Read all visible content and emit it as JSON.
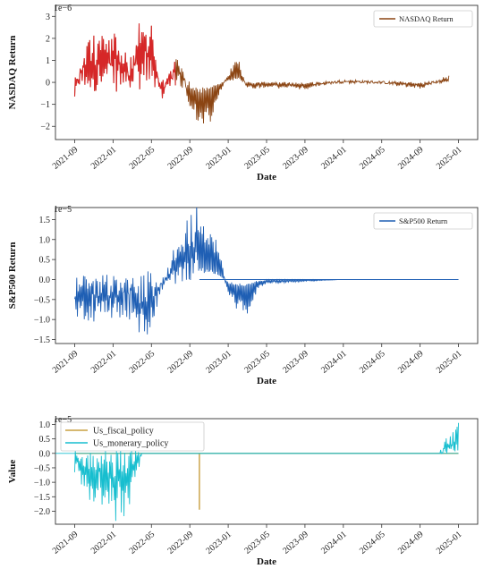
{
  "chart_data": [
    {
      "type": "line",
      "title": "",
      "xlabel": "Date",
      "ylabel": "NASDAQ Return",
      "exponent_label": "1e−6",
      "y_ticks": [
        "3",
        "2",
        "1",
        "0",
        "−1",
        "−2"
      ],
      "y_tick_values": [
        3,
        2,
        1,
        0,
        -1,
        -2
      ],
      "x_ticks": [
        "2021-09",
        "2022-01",
        "2022-05",
        "2022-09",
        "2023-01",
        "2023-05",
        "2023-09",
        "2024-01",
        "2024-05",
        "2024-09",
        "2025-01"
      ],
      "xlim": [
        "2021-07",
        "2025-03"
      ],
      "ylim": [
        -2.6,
        3.5
      ],
      "legend": {
        "position": "top-right",
        "entries": [
          "NASDAQ Return"
        ]
      },
      "series": [
        {
          "name": "NASDAQ Return",
          "color": "#8b4513",
          "highlight_color": "#d62728",
          "x": [
            "2021-09",
            "2021-10",
            "2021-11",
            "2021-12",
            "2022-01",
            "2022-02",
            "2022-03",
            "2022-04",
            "2022-05",
            "2022-06",
            "2022-07",
            "2022-08",
            "2022-09",
            "2022-10",
            "2022-11",
            "2022-12",
            "2023-01",
            "2023-02",
            "2023-03",
            "2023-05",
            "2023-09",
            "2024-01",
            "2024-05",
            "2024-09",
            "2024-12"
          ],
          "y": [
            -0.6,
            1.6,
            2.0,
            1.9,
            2.1,
            1.4,
            1.0,
            3.4,
            2.1,
            -0.8,
            0.6,
            1.0,
            -1.2,
            -2.3,
            -2.0,
            -0.7,
            0.5,
            1.2,
            -0.3,
            -0.2,
            -0.3,
            0.1,
            0.0,
            -0.3,
            0.3
          ]
        }
      ]
    },
    {
      "type": "line",
      "title": "",
      "xlabel": "Date",
      "ylabel": "S&P500 Return",
      "exponent_label": "1e−5",
      "y_ticks": [
        "1.5",
        "1.0",
        "0.5",
        "0.0",
        "−0.5",
        "−1.0",
        "−1.5"
      ],
      "y_tick_values": [
        1.5,
        1.0,
        0.5,
        0.0,
        -0.5,
        -1.0,
        -1.5
      ],
      "x_ticks": [
        "2021-09",
        "2022-01",
        "2022-05",
        "2022-09",
        "2023-01",
        "2023-05",
        "2023-09",
        "2024-01",
        "2024-05",
        "2024-09",
        "2025-01"
      ],
      "xlim": [
        "2021-07",
        "2025-03"
      ],
      "ylim": [
        -1.6,
        1.8
      ],
      "legend": {
        "position": "top-right",
        "entries": [
          "S&P500 Return"
        ]
      },
      "series": [
        {
          "name": "S&P500 Return",
          "color": "#1f5fb4",
          "x": [
            "2021-09",
            "2021-10",
            "2021-11",
            "2021-12",
            "2022-01",
            "2022-02",
            "2022-03",
            "2022-04",
            "2022-05",
            "2022-06",
            "2022-07",
            "2022-08",
            "2022-09",
            "2022-10",
            "2022-11",
            "2022-12",
            "2023-01",
            "2023-02",
            "2023-03",
            "2023-04",
            "2023-05",
            "2024-01",
            "2025-01"
          ],
          "y": [
            -0.9,
            -0.8,
            -1.0,
            -0.7,
            -0.9,
            -0.8,
            -0.9,
            -1.4,
            -1.2,
            -0.3,
            0.5,
            0.9,
            1.5,
            1.7,
            1.3,
            0.9,
            -0.5,
            -0.8,
            -0.9,
            -0.3,
            -0.1,
            0.0,
            0.0
          ]
        }
      ]
    },
    {
      "type": "line",
      "title": "",
      "xlabel": "Date",
      "ylabel": "Value",
      "exponent_label": "1e−5",
      "y_ticks": [
        "1.0",
        "0.5",
        "0.0",
        "−0.5",
        "−1.0",
        "−1.5",
        "−2.0"
      ],
      "y_tick_values": [
        1.0,
        0.5,
        0.0,
        -0.5,
        -1.0,
        -1.5,
        -2.0
      ],
      "x_ticks": [
        "2021-09",
        "2022-01",
        "2022-05",
        "2022-09",
        "2023-01",
        "2023-05",
        "2023-09",
        "2024-01",
        "2024-05",
        "2024-09",
        "2025-01"
      ],
      "xlim": [
        "2021-07",
        "2025-03"
      ],
      "ylim": [
        -2.45,
        1.2
      ],
      "legend": {
        "position": "top-left",
        "entries": [
          "Us_fiscal_policy",
          "Us_monerary_policy"
        ]
      },
      "series": [
        {
          "name": "Us_fiscal_policy",
          "color": "#c8a040",
          "x": [
            "2021-09",
            "2022-10",
            "2022-10",
            "2022-10",
            "2025-01"
          ],
          "y": [
            0.0,
            0.0,
            -1.95,
            0.0,
            0.0
          ]
        },
        {
          "name": "Us_monerary_policy",
          "color": "#17becf",
          "x": [
            "2021-09",
            "2021-10",
            "2021-11",
            "2021-12",
            "2022-01",
            "2022-02",
            "2022-03",
            "2022-04",
            "2024-04",
            "2024-11",
            "2024-12",
            "2025-01"
          ],
          "y": [
            -0.6,
            -1.2,
            -1.5,
            -1.7,
            -2.0,
            -2.2,
            -1.7,
            0.0,
            0.0,
            0.0,
            0.6,
            1.05
          ]
        }
      ]
    }
  ]
}
